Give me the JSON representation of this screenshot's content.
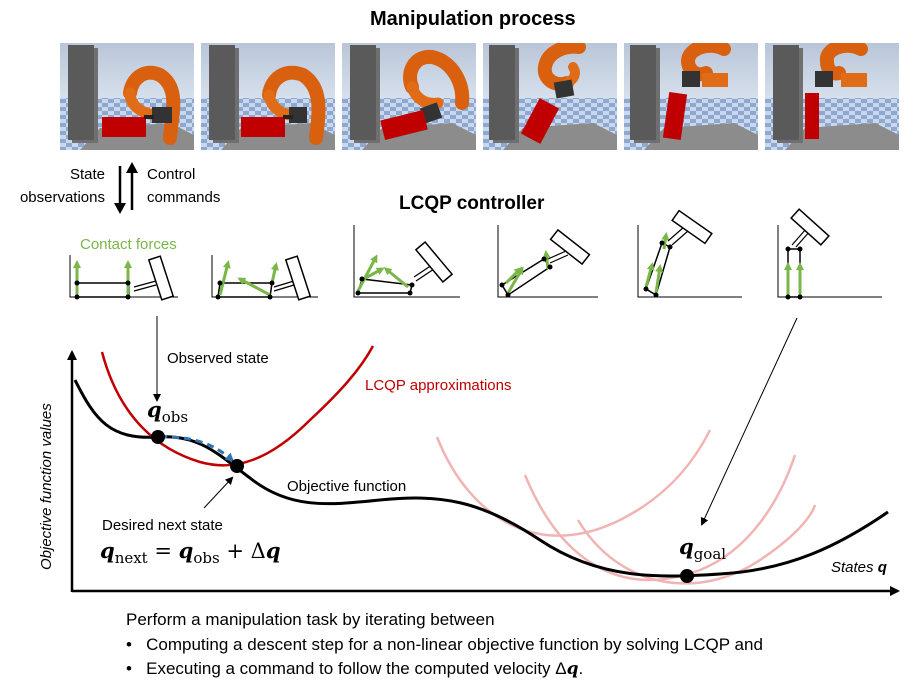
{
  "header": {
    "title": "Manipulation process"
  },
  "frames": [
    {
      "name": "frame-1"
    },
    {
      "name": "frame-2"
    },
    {
      "name": "frame-3"
    },
    {
      "name": "frame-4"
    },
    {
      "name": "frame-5"
    },
    {
      "name": "frame-6"
    }
  ],
  "loop": {
    "state_line1": "State",
    "state_line2": "observations",
    "control_line1": "Control",
    "control_line2": "commands"
  },
  "controller": {
    "title": "LCQP controller",
    "contact_forces": "Contact forces"
  },
  "plot": {
    "ylabel": "Objective function values",
    "xlabel_text": "States ",
    "xlabel_var": "q",
    "observed_state": "Observed state",
    "lcqp_approx": "LCQP approximations",
    "objective": "Objective function",
    "desired_next": "Desired next state",
    "q_obs_var": "q",
    "q_obs_sub": "obs",
    "q_goal_var": "q",
    "q_goal_sub": "goal",
    "eq_lhs_var": "q",
    "eq_lhs_sub": "next",
    "eq_eq": " = ",
    "eq_rhs_var": "q",
    "eq_rhs_sub": "obs",
    "eq_plus": " + Δ",
    "eq_dq": "q"
  },
  "summary": {
    "intro": "Perform a manipulation task by iterating between",
    "bullet1": "Computing a descent step for a non-linear objective function by solving LCQP and",
    "bullet2_text": "Executing a command to follow the computed velocity Δ",
    "bullet2_var": "q",
    "bullet2_end": "."
  },
  "colors": {
    "objective": "#000000",
    "approx": "#c00000",
    "approx_faded": "#f0b4b4",
    "descent": "#2e75b6",
    "force": "#7ab648",
    "robot": "#d9600f",
    "box": "#c00000"
  }
}
